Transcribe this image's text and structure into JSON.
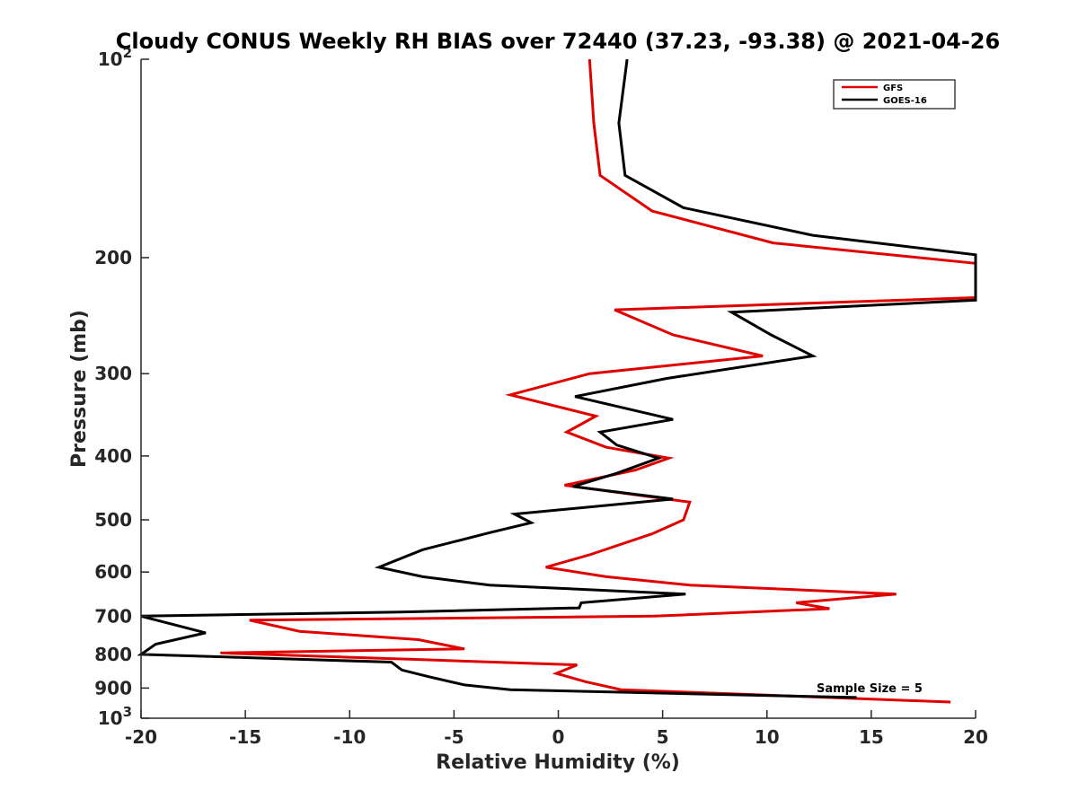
{
  "chart_data": {
    "type": "line",
    "title": "Cloudy CONUS Weekly RH BIAS over 72440 (37.23, -93.38) @ 2021-04-26",
    "xlabel": "Relative Humidity (%)",
    "ylabel": "Pressure (mb)",
    "xlim": [
      -20,
      20
    ],
    "ylim": [
      100,
      1000
    ],
    "y_scale": "log",
    "y_reversed": true,
    "x_ticks": [
      "-20",
      "-15",
      "-10",
      "-5",
      "0",
      "5",
      "10",
      "15",
      "20"
    ],
    "y_ticks": [
      {
        "base": "10",
        "exp": "2"
      },
      {
        "base": "200",
        "exp": ""
      },
      {
        "base": "300",
        "exp": ""
      },
      {
        "base": "400",
        "exp": ""
      },
      {
        "base": "500",
        "exp": ""
      },
      {
        "base": "600",
        "exp": ""
      },
      {
        "base": "700",
        "exp": ""
      },
      {
        "base": "800",
        "exp": ""
      },
      {
        "base": "900",
        "exp": ""
      },
      {
        "base": "10",
        "exp": "3"
      }
    ],
    "grid": false,
    "legend_position": "top-right",
    "annotation": "Sample Size = 5",
    "series": [
      {
        "name": "GFS",
        "color": "#e00000",
        "points": [
          [
            1.5,
            100
          ],
          [
            1.7,
            125
          ],
          [
            2.0,
            150
          ],
          [
            4.5,
            170
          ],
          [
            10.3,
            190
          ],
          [
            20.0,
            204
          ],
          [
            20.0,
            230
          ],
          [
            2.7,
            240
          ],
          [
            5.5,
            262
          ],
          [
            9.8,
            282
          ],
          [
            1.5,
            300
          ],
          [
            -2.3,
            323
          ],
          [
            1.8,
            348
          ],
          [
            0.4,
            368
          ],
          [
            2.3,
            388
          ],
          [
            5.3,
            403
          ],
          [
            3.7,
            420
          ],
          [
            0.3,
            443
          ],
          [
            6.3,
            470
          ],
          [
            6.0,
            500
          ],
          [
            4.5,
            525
          ],
          [
            1.5,
            565
          ],
          [
            -0.6,
            590
          ],
          [
            2.3,
            610
          ],
          [
            6.3,
            628
          ],
          [
            16.2,
            648
          ],
          [
            11.4,
            668
          ],
          [
            13.0,
            682
          ],
          [
            4.6,
            700
          ],
          [
            -14.8,
            710
          ],
          [
            -12.4,
            738
          ],
          [
            -6.7,
            760
          ],
          [
            -4.5,
            785
          ],
          [
            -16.2,
            796
          ],
          [
            -6.5,
            815
          ],
          [
            0.9,
            830
          ],
          [
            -0.1,
            855
          ],
          [
            1.3,
            880
          ],
          [
            3.0,
            905
          ],
          [
            18.8,
            945
          ]
        ]
      },
      {
        "name": "GOES-16",
        "color": "#000000",
        "points": [
          [
            3.3,
            100
          ],
          [
            2.9,
            125
          ],
          [
            3.2,
            150
          ],
          [
            6.0,
            168
          ],
          [
            12.2,
            185
          ],
          [
            20.0,
            198
          ],
          [
            20.0,
            232
          ],
          [
            8.3,
            242
          ],
          [
            10.2,
            262
          ],
          [
            12.2,
            282
          ],
          [
            5.2,
            305
          ],
          [
            0.8,
            325
          ],
          [
            5.5,
            352
          ],
          [
            2.0,
            368
          ],
          [
            2.8,
            385
          ],
          [
            4.8,
            403
          ],
          [
            2.8,
            425
          ],
          [
            0.7,
            445
          ],
          [
            5.5,
            465
          ],
          [
            -2.1,
            490
          ],
          [
            -1.3,
            505
          ],
          [
            -3.2,
            522
          ],
          [
            -6.5,
            555
          ],
          [
            -8.6,
            590
          ],
          [
            -6.5,
            610
          ],
          [
            -3.3,
            628
          ],
          [
            6.1,
            648
          ],
          [
            1.1,
            668
          ],
          [
            1.0,
            680
          ],
          [
            -7.6,
            690
          ],
          [
            -20.0,
            700
          ],
          [
            -16.9,
            742
          ],
          [
            -19.3,
            772
          ],
          [
            -20.0,
            800
          ],
          [
            -8.0,
            822
          ],
          [
            -7.5,
            845
          ],
          [
            -6.2,
            865
          ],
          [
            -4.5,
            890
          ],
          [
            -2.3,
            905
          ],
          [
            14.3,
            930
          ]
        ]
      }
    ]
  }
}
